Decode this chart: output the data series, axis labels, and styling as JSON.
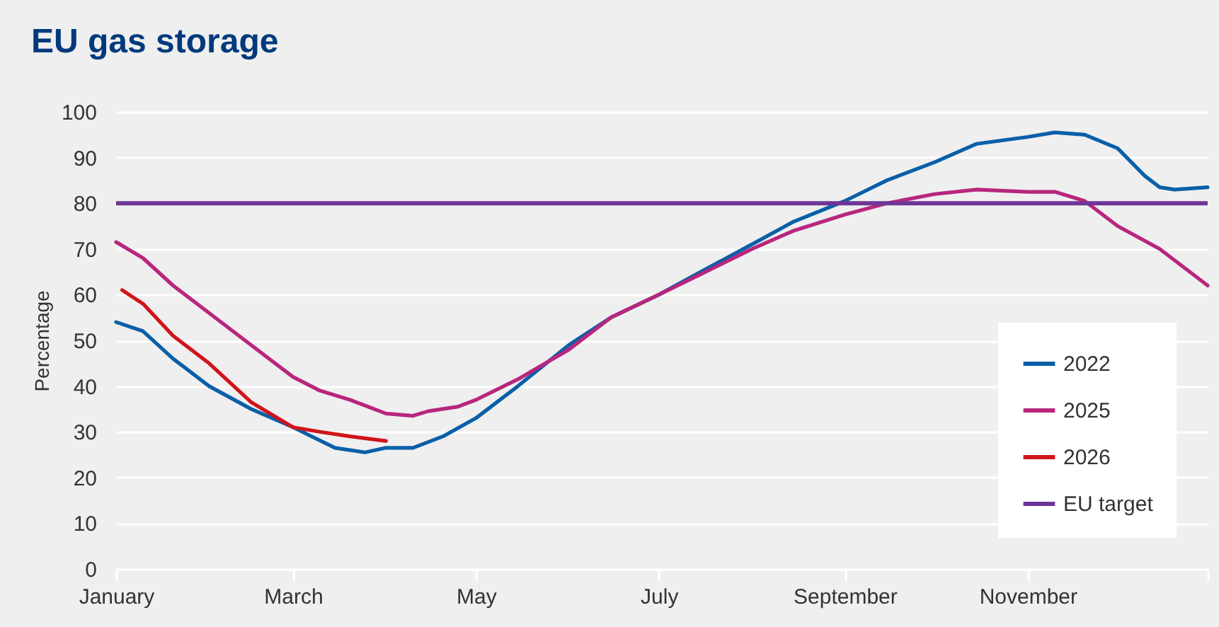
{
  "chart_data": {
    "type": "line",
    "title": "EU gas storage",
    "ylabel": "Percentage",
    "xlim": [
      "--01-01",
      "--12-31"
    ],
    "xticks": [
      {
        "value": "--01-01",
        "label": "January"
      },
      {
        "value": "--03-01",
        "label": "March"
      },
      {
        "value": "--05-01",
        "label": "May"
      },
      {
        "value": "--07-01",
        "label": "July"
      },
      {
        "value": "--09-01",
        "label": "September"
      },
      {
        "value": "--11-01",
        "label": "November"
      },
      {
        "value": "--12-31",
        "label": null
      }
    ],
    "ylim": [
      0,
      100
    ],
    "yticks": [
      0,
      10,
      20,
      30,
      40,
      50,
      60,
      70,
      80,
      90,
      100
    ],
    "grid": "y",
    "legend": "bottom right",
    "line_style": "solid",
    "marker": "none",
    "series": [
      {
        "name": "2022",
        "color": "#0a5fa8",
        "x": [
          "--01-01",
          "--01-10",
          "--01-20",
          "--02-01",
          "--02-15",
          "--03-01",
          "--03-15",
          "--03-25",
          "--04-01",
          "--04-10",
          "--04-20",
          "--05-01",
          "--05-15",
          "--06-01",
          "--06-15",
          "--07-01",
          "--07-15",
          "--08-01",
          "--08-15",
          "--09-01",
          "--09-15",
          "--10-01",
          "--10-15",
          "--11-01",
          "--11-10",
          "--11-20",
          "--12-01",
          "--12-10",
          "--12-15",
          "--12-20",
          "--12-31"
        ],
        "values": [
          54,
          52,
          46,
          40,
          35,
          31,
          26.5,
          25.5,
          26.5,
          26.5,
          29,
          33,
          40,
          49,
          55,
          60,
          65,
          71,
          76,
          80.5,
          85,
          89,
          93,
          94.5,
          95.5,
          95,
          92,
          86,
          83.5,
          83,
          83.5
        ]
      },
      {
        "name": "2025",
        "color": "#b8267e",
        "x": [
          "--01-01",
          "--01-10",
          "--01-20",
          "--02-01",
          "--02-15",
          "--03-01",
          "--03-10",
          "--03-20",
          "--04-01",
          "--04-10",
          "--04-15",
          "--04-25",
          "--05-01",
          "--05-15",
          "--06-01",
          "--06-15",
          "--07-01",
          "--07-15",
          "--08-01",
          "--08-15",
          "--09-01",
          "--09-15",
          "--10-01",
          "--10-15",
          "--11-01",
          "--11-10",
          "--11-20",
          "--12-01",
          "--12-15",
          "--12-31"
        ],
        "values": [
          71.5,
          68,
          62,
          56,
          49,
          42,
          39,
          37,
          34,
          33.5,
          34.5,
          35.5,
          37,
          41.5,
          48,
          55,
          60,
          64.5,
          70,
          74,
          77.5,
          80,
          82,
          83,
          82.5,
          82.5,
          80.5,
          75,
          70,
          62
        ]
      },
      {
        "name": "2026",
        "color": "#d0141c",
        "x": [
          "--01-03",
          "--01-10",
          "--01-20",
          "--02-01",
          "--02-15",
          "--03-01",
          "--03-10",
          "--03-20",
          "--04-01"
        ],
        "values": [
          61,
          58,
          51,
          45,
          36.5,
          31,
          30,
          29,
          28
        ]
      }
    ],
    "ref_lines": [
      {
        "axis": "y",
        "value": 80,
        "label": "EU target",
        "color": "#6e3596",
        "line_style": "solid"
      }
    ]
  }
}
